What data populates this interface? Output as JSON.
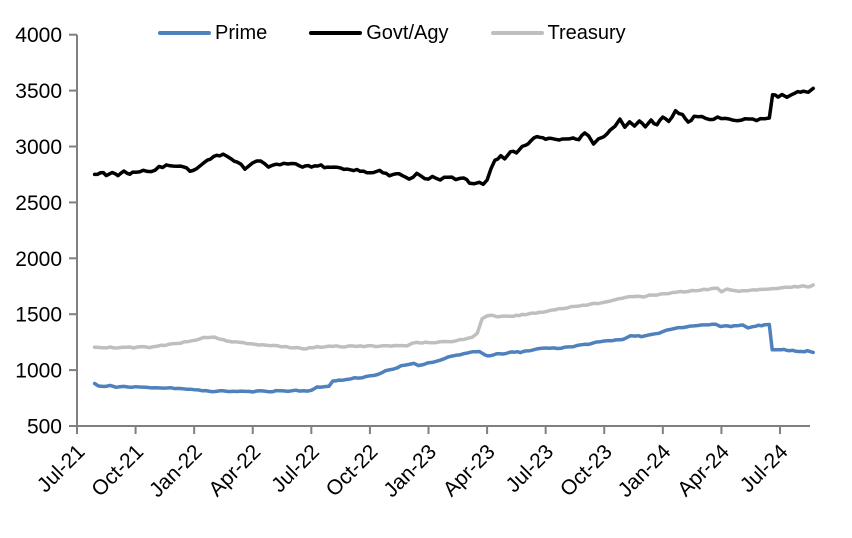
{
  "chart_data": {
    "type": "line",
    "title": "",
    "legend": {
      "position": "top",
      "entries": [
        "Prime",
        "Govt/Agy",
        "Treasury"
      ]
    },
    "x_axis": {
      "unit": "months_since_first_tick",
      "months_between_ticks": 3,
      "tick_labels": [
        "Jul-21",
        "Oct-21",
        "Jan-22",
        "Apr-22",
        "Jul-22",
        "Oct-22",
        "Jan-23",
        "Apr-23",
        "Jul-23",
        "Oct-23",
        "Jan-24",
        "Apr-24",
        "Jul-24"
      ]
    },
    "y_axis": {
      "min": 500,
      "max": 4000,
      "step": 500,
      "tick_labels": [
        "500",
        "1000",
        "1500",
        "2000",
        "2500",
        "3000",
        "3500",
        "4000"
      ]
    },
    "axis_color": "#808080",
    "series": [
      {
        "name": "Prime",
        "color": "#4F81BD",
        "points": [
          [
            0.9,
            880
          ],
          [
            1.1,
            858
          ],
          [
            1.4,
            852
          ],
          [
            1.7,
            860
          ],
          [
            2,
            850
          ],
          [
            2.4,
            853
          ],
          [
            2.8,
            846
          ],
          [
            3.2,
            850
          ],
          [
            3.6,
            843
          ],
          [
            4,
            846
          ],
          [
            4.4,
            840
          ],
          [
            4.8,
            842
          ],
          [
            5.2,
            835
          ],
          [
            5.6,
            830
          ],
          [
            6,
            822
          ],
          [
            6.4,
            818
          ],
          [
            6.8,
            812
          ],
          [
            7.2,
            810
          ],
          [
            7.6,
            814
          ],
          [
            8,
            808
          ],
          [
            8.4,
            812
          ],
          [
            8.8,
            806
          ],
          [
            9.2,
            810
          ],
          [
            9.6,
            813
          ],
          [
            10,
            810
          ],
          [
            10.4,
            816
          ],
          [
            10.8,
            812
          ],
          [
            11.2,
            818
          ],
          [
            11.6,
            814
          ],
          [
            12,
            820
          ],
          [
            12.3,
            845
          ],
          [
            12.6,
            850
          ],
          [
            12.9,
            860
          ],
          [
            13.1,
            900
          ],
          [
            13.4,
            908
          ],
          [
            13.8,
            915
          ],
          [
            14.2,
            928
          ],
          [
            14.6,
            935
          ],
          [
            15,
            948
          ],
          [
            15.4,
            962
          ],
          [
            15.8,
            990
          ],
          [
            16.2,
            1008
          ],
          [
            16.6,
            1035
          ],
          [
            17,
            1052
          ],
          [
            17.25,
            1062
          ],
          [
            17.5,
            1040
          ],
          [
            17.75,
            1055
          ],
          [
            18,
            1062
          ],
          [
            18.4,
            1080
          ],
          [
            18.8,
            1105
          ],
          [
            19.2,
            1125
          ],
          [
            19.6,
            1140
          ],
          [
            20,
            1152
          ],
          [
            20.3,
            1160
          ],
          [
            20.6,
            1165
          ],
          [
            20.9,
            1135
          ],
          [
            21.2,
            1128
          ],
          [
            21.5,
            1142
          ],
          [
            21.8,
            1148
          ],
          [
            22.1,
            1155
          ],
          [
            22.4,
            1162
          ],
          [
            22.7,
            1158
          ],
          [
            23,
            1170
          ],
          [
            23.4,
            1185
          ],
          [
            23.8,
            1195
          ],
          [
            24.2,
            1198
          ],
          [
            24.6,
            1195
          ],
          [
            25,
            1205
          ],
          [
            25.4,
            1212
          ],
          [
            25.8,
            1222
          ],
          [
            26.2,
            1235
          ],
          [
            26.6,
            1248
          ],
          [
            27,
            1258
          ],
          [
            27.4,
            1268
          ],
          [
            27.8,
            1272
          ],
          [
            28.1,
            1282
          ],
          [
            28.35,
            1312
          ],
          [
            28.6,
            1308
          ],
          [
            28.9,
            1298
          ],
          [
            29.2,
            1308
          ],
          [
            29.6,
            1320
          ],
          [
            30,
            1348
          ],
          [
            30.4,
            1365
          ],
          [
            30.8,
            1380
          ],
          [
            31.2,
            1390
          ],
          [
            31.6,
            1398
          ],
          [
            32,
            1402
          ],
          [
            32.4,
            1408
          ],
          [
            32.7,
            1412
          ],
          [
            32.95,
            1385
          ],
          [
            33.2,
            1398
          ],
          [
            33.5,
            1392
          ],
          [
            33.8,
            1398
          ],
          [
            34.1,
            1402
          ],
          [
            34.35,
            1382
          ],
          [
            34.6,
            1392
          ],
          [
            34.9,
            1398
          ],
          [
            35.2,
            1402
          ],
          [
            35.45,
            1408
          ],
          [
            35.6,
            1185
          ],
          [
            35.9,
            1178
          ],
          [
            36.2,
            1182
          ],
          [
            36.5,
            1178
          ],
          [
            36.8,
            1172
          ],
          [
            37.1,
            1168
          ],
          [
            37.4,
            1170
          ],
          [
            37.7,
            1158
          ]
        ]
      },
      {
        "name": "Govt/Agy",
        "color": "#000000",
        "points": [
          [
            0.9,
            2750
          ],
          [
            1.2,
            2775
          ],
          [
            1.5,
            2735
          ],
          [
            1.8,
            2770
          ],
          [
            2.1,
            2745
          ],
          [
            2.4,
            2775
          ],
          [
            2.7,
            2760
          ],
          [
            3,
            2770
          ],
          [
            3.4,
            2790
          ],
          [
            3.8,
            2775
          ],
          [
            4.2,
            2810
          ],
          [
            4.76,
            2835
          ],
          [
            5.3,
            2830
          ],
          [
            5.94,
            2775
          ],
          [
            6.5,
            2850
          ],
          [
            7,
            2900
          ],
          [
            7.48,
            2940
          ],
          [
            7.9,
            2890
          ],
          [
            8.2,
            2870
          ],
          [
            8.6,
            2800
          ],
          [
            9,
            2855
          ],
          [
            9.4,
            2865
          ],
          [
            9.8,
            2820
          ],
          [
            10.2,
            2850
          ],
          [
            10.6,
            2840
          ],
          [
            11,
            2855
          ],
          [
            11.4,
            2830
          ],
          [
            12,
            2815
          ],
          [
            12.5,
            2825
          ],
          [
            13,
            2810
          ],
          [
            13.5,
            2800
          ],
          [
            14,
            2780
          ],
          [
            14.5,
            2790
          ],
          [
            15,
            2760
          ],
          [
            15.5,
            2775
          ],
          [
            16,
            2740
          ],
          [
            16.5,
            2755
          ],
          [
            17,
            2720
          ],
          [
            17.4,
            2750
          ],
          [
            17.8,
            2710
          ],
          [
            18.2,
            2730
          ],
          [
            18.6,
            2695
          ],
          [
            19,
            2730
          ],
          [
            19.4,
            2700
          ],
          [
            19.8,
            2715
          ],
          [
            20.1,
            2680
          ],
          [
            20.35,
            2655
          ],
          [
            20.6,
            2680
          ],
          [
            20.8,
            2660
          ],
          [
            21,
            2700
          ],
          [
            21.2,
            2810
          ],
          [
            21.4,
            2880
          ],
          [
            21.7,
            2910
          ],
          [
            21.9,
            2880
          ],
          [
            22.2,
            2950
          ],
          [
            22.5,
            2940
          ],
          [
            22.8,
            2990
          ],
          [
            23.1,
            3030
          ],
          [
            23.4,
            3070
          ],
          [
            23.7,
            3090
          ],
          [
            24,
            3065
          ],
          [
            24.3,
            3080
          ],
          [
            24.7,
            3060
          ],
          [
            25,
            3075
          ],
          [
            25.4,
            3085
          ],
          [
            25.7,
            3070
          ],
          [
            26,
            3110
          ],
          [
            26.2,
            3105
          ],
          [
            26.45,
            3030
          ],
          [
            26.7,
            3070
          ],
          [
            27,
            3085
          ],
          [
            27.3,
            3150
          ],
          [
            27.55,
            3175
          ],
          [
            27.8,
            3240
          ],
          [
            28.05,
            3165
          ],
          [
            28.3,
            3220
          ],
          [
            28.55,
            3175
          ],
          [
            28.8,
            3230
          ],
          [
            29.1,
            3180
          ],
          [
            29.4,
            3230
          ],
          [
            29.7,
            3200
          ],
          [
            30,
            3255
          ],
          [
            30.3,
            3225
          ],
          [
            30.65,
            3310
          ],
          [
            31,
            3290
          ],
          [
            31.3,
            3210
          ],
          [
            31.6,
            3260
          ],
          [
            32,
            3270
          ],
          [
            32.4,
            3240
          ],
          [
            32.8,
            3255
          ],
          [
            33.2,
            3240
          ],
          [
            33.6,
            3235
          ],
          [
            34,
            3230
          ],
          [
            34.4,
            3245
          ],
          [
            34.8,
            3240
          ],
          [
            35.2,
            3250
          ],
          [
            35.45,
            3255
          ],
          [
            35.62,
            3460
          ],
          [
            35.9,
            3445
          ],
          [
            36.1,
            3470
          ],
          [
            36.35,
            3450
          ],
          [
            36.6,
            3460
          ],
          [
            36.9,
            3480
          ],
          [
            37.2,
            3500
          ],
          [
            37.45,
            3495
          ],
          [
            37.7,
            3520
          ]
        ]
      },
      {
        "name": "Treasury",
        "color": "#BFBFBF",
        "points": [
          [
            0.9,
            1205
          ],
          [
            1.3,
            1198
          ],
          [
            1.7,
            1205
          ],
          [
            2.1,
            1198
          ],
          [
            2.5,
            1205
          ],
          [
            2.9,
            1200
          ],
          [
            3.3,
            1208
          ],
          [
            3.7,
            1205
          ],
          [
            4.1,
            1215
          ],
          [
            4.5,
            1222
          ],
          [
            4.9,
            1235
          ],
          [
            5.3,
            1245
          ],
          [
            5.7,
            1258
          ],
          [
            6.1,
            1272
          ],
          [
            6.5,
            1288
          ],
          [
            6.9,
            1298
          ],
          [
            7.2,
            1285
          ],
          [
            7.5,
            1268
          ],
          [
            7.8,
            1258
          ],
          [
            8.1,
            1250
          ],
          [
            8.5,
            1242
          ],
          [
            8.9,
            1232
          ],
          [
            9.3,
            1228
          ],
          [
            9.7,
            1222
          ],
          [
            10.1,
            1218
          ],
          [
            10.5,
            1212
          ],
          [
            10.9,
            1202
          ],
          [
            11.3,
            1198
          ],
          [
            11.7,
            1192
          ],
          [
            12.1,
            1202
          ],
          [
            12.5,
            1208
          ],
          [
            12.9,
            1212
          ],
          [
            13.3,
            1215
          ],
          [
            13.7,
            1210
          ],
          [
            14.1,
            1216
          ],
          [
            14.5,
            1212
          ],
          [
            14.9,
            1216
          ],
          [
            15.3,
            1212
          ],
          [
            15.7,
            1215
          ],
          [
            16.1,
            1214
          ],
          [
            16.5,
            1217
          ],
          [
            16.9,
            1220
          ],
          [
            17.15,
            1242
          ],
          [
            17.4,
            1248
          ],
          [
            17.7,
            1245
          ],
          [
            18,
            1250
          ],
          [
            18.4,
            1248
          ],
          [
            18.8,
            1254
          ],
          [
            19.2,
            1258
          ],
          [
            19.6,
            1268
          ],
          [
            20,
            1282
          ],
          [
            20.25,
            1292
          ],
          [
            20.5,
            1330
          ],
          [
            20.75,
            1465
          ],
          [
            21,
            1482
          ],
          [
            21.3,
            1488
          ],
          [
            21.6,
            1478
          ],
          [
            21.9,
            1488
          ],
          [
            22.2,
            1478
          ],
          [
            22.5,
            1488
          ],
          [
            22.8,
            1495
          ],
          [
            23.1,
            1502
          ],
          [
            23.5,
            1512
          ],
          [
            23.9,
            1522
          ],
          [
            24.3,
            1535
          ],
          [
            24.7,
            1548
          ],
          [
            25.1,
            1558
          ],
          [
            25.5,
            1568
          ],
          [
            25.9,
            1578
          ],
          [
            26.3,
            1590
          ],
          [
            26.7,
            1600
          ],
          [
            27.1,
            1612
          ],
          [
            27.5,
            1625
          ],
          [
            27.9,
            1640
          ],
          [
            28.3,
            1655
          ],
          [
            28.7,
            1665
          ],
          [
            29,
            1658
          ],
          [
            29.3,
            1668
          ],
          [
            29.7,
            1675
          ],
          [
            30.1,
            1682
          ],
          [
            30.5,
            1690
          ],
          [
            30.9,
            1698
          ],
          [
            31.3,
            1705
          ],
          [
            31.7,
            1712
          ],
          [
            32.1,
            1720
          ],
          [
            32.5,
            1728
          ],
          [
            32.8,
            1735
          ],
          [
            33,
            1702
          ],
          [
            33.3,
            1722
          ],
          [
            33.6,
            1712
          ],
          [
            33.9,
            1705
          ],
          [
            34.2,
            1712
          ],
          [
            34.5,
            1716
          ],
          [
            34.8,
            1720
          ],
          [
            35.1,
            1722
          ],
          [
            35.4,
            1726
          ],
          [
            35.7,
            1730
          ],
          [
            36,
            1735
          ],
          [
            36.3,
            1740
          ],
          [
            36.6,
            1744
          ],
          [
            36.9,
            1748
          ],
          [
            37.2,
            1752
          ],
          [
            37.5,
            1748
          ],
          [
            37.7,
            1762
          ]
        ]
      }
    ]
  }
}
